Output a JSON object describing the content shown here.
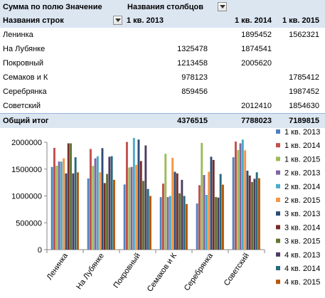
{
  "pivot": {
    "values_label": "Сумма по полю Значение",
    "columns_label": "Названия столбцов",
    "rows_label": "Названия строк",
    "col_headers": [
      "1 кв. 2013",
      "1 кв. 2014",
      "1 кв. 2015"
    ],
    "rows": [
      {
        "name": "Ленинка",
        "v": [
          "",
          "1895452",
          "1562321"
        ]
      },
      {
        "name": "На Лубянке",
        "v": [
          "1325478",
          "1874541",
          ""
        ]
      },
      {
        "name": "Покровный",
        "v": [
          "1213458",
          "2005620",
          ""
        ]
      },
      {
        "name": "Семаков и К",
        "v": [
          "978123",
          "",
          "1785412"
        ]
      },
      {
        "name": "Серебрянка",
        "v": [
          "859456",
          "",
          "1987452"
        ]
      },
      {
        "name": "Советский",
        "v": [
          "",
          "2012410",
          "1854630"
        ]
      }
    ],
    "total": {
      "name": "Общий итог",
      "v": [
        "4376515",
        "7788023",
        "7189815"
      ]
    }
  },
  "chart_data": {
    "type": "bar",
    "categories": [
      "Ленинка",
      "На Лубянке",
      "Покровный",
      "Семаков и К",
      "Серебрянка",
      "Советский"
    ],
    "ylim": [
      0,
      2000000
    ],
    "yticks": [
      "0",
      "500000",
      "1000000",
      "1500000",
      "2000000"
    ],
    "series": [
      {
        "name": "1 кв. 2013",
        "color": "#4f81bd",
        "values": [
          1540000,
          1325478,
          1213458,
          978123,
          859456,
          1720000
        ]
      },
      {
        "name": "1 кв. 2014",
        "color": "#c0504d",
        "values": [
          1895452,
          1874541,
          2005620,
          1230000,
          1200000,
          2012410
        ]
      },
      {
        "name": "1 кв. 2015",
        "color": "#9bbb59",
        "values": [
          1562321,
          1560000,
          1530000,
          1785412,
          1987452,
          1854630
        ]
      },
      {
        "name": "2 кв. 2013",
        "color": "#8064a2",
        "values": [
          1640000,
          1700000,
          1540000,
          980000,
          1390000,
          1980000
        ]
      },
      {
        "name": "2 кв. 2014",
        "color": "#4bacc6",
        "values": [
          1640000,
          1740000,
          2080000,
          1000000,
          1020000,
          2050000
        ]
      },
      {
        "name": "2 кв. 2015",
        "color": "#f79646",
        "values": [
          1700000,
          1440000,
          1580000,
          1710000,
          1450000,
          1850000
        ]
      },
      {
        "name": "3 кв. 2013",
        "color": "#2c4d75",
        "values": [
          1420000,
          1890000,
          2050000,
          1450000,
          1730000,
          1470000
        ]
      },
      {
        "name": "3 кв. 2014",
        "color": "#772c2a",
        "values": [
          1980000,
          1240000,
          1650000,
          1420000,
          1670000,
          1380000
        ]
      },
      {
        "name": "3 кв. 2015",
        "color": "#5f7530",
        "values": [
          1980000,
          1410000,
          1280000,
          1050000,
          980000,
          1260000
        ]
      },
      {
        "name": "4 кв. 2013",
        "color": "#4d3b62",
        "values": [
          1420000,
          1730000,
          1940000,
          1300000,
          970000,
          1320000
        ]
      },
      {
        "name": "4 кв. 2014",
        "color": "#276a7c",
        "values": [
          1720000,
          1740000,
          1130000,
          1000000,
          1410000,
          1440000
        ]
      },
      {
        "name": "4 кв. 2015",
        "color": "#b65708",
        "values": [
          1440000,
          1300000,
          1000000,
          850000,
          1210000,
          1330000
        ]
      }
    ]
  }
}
